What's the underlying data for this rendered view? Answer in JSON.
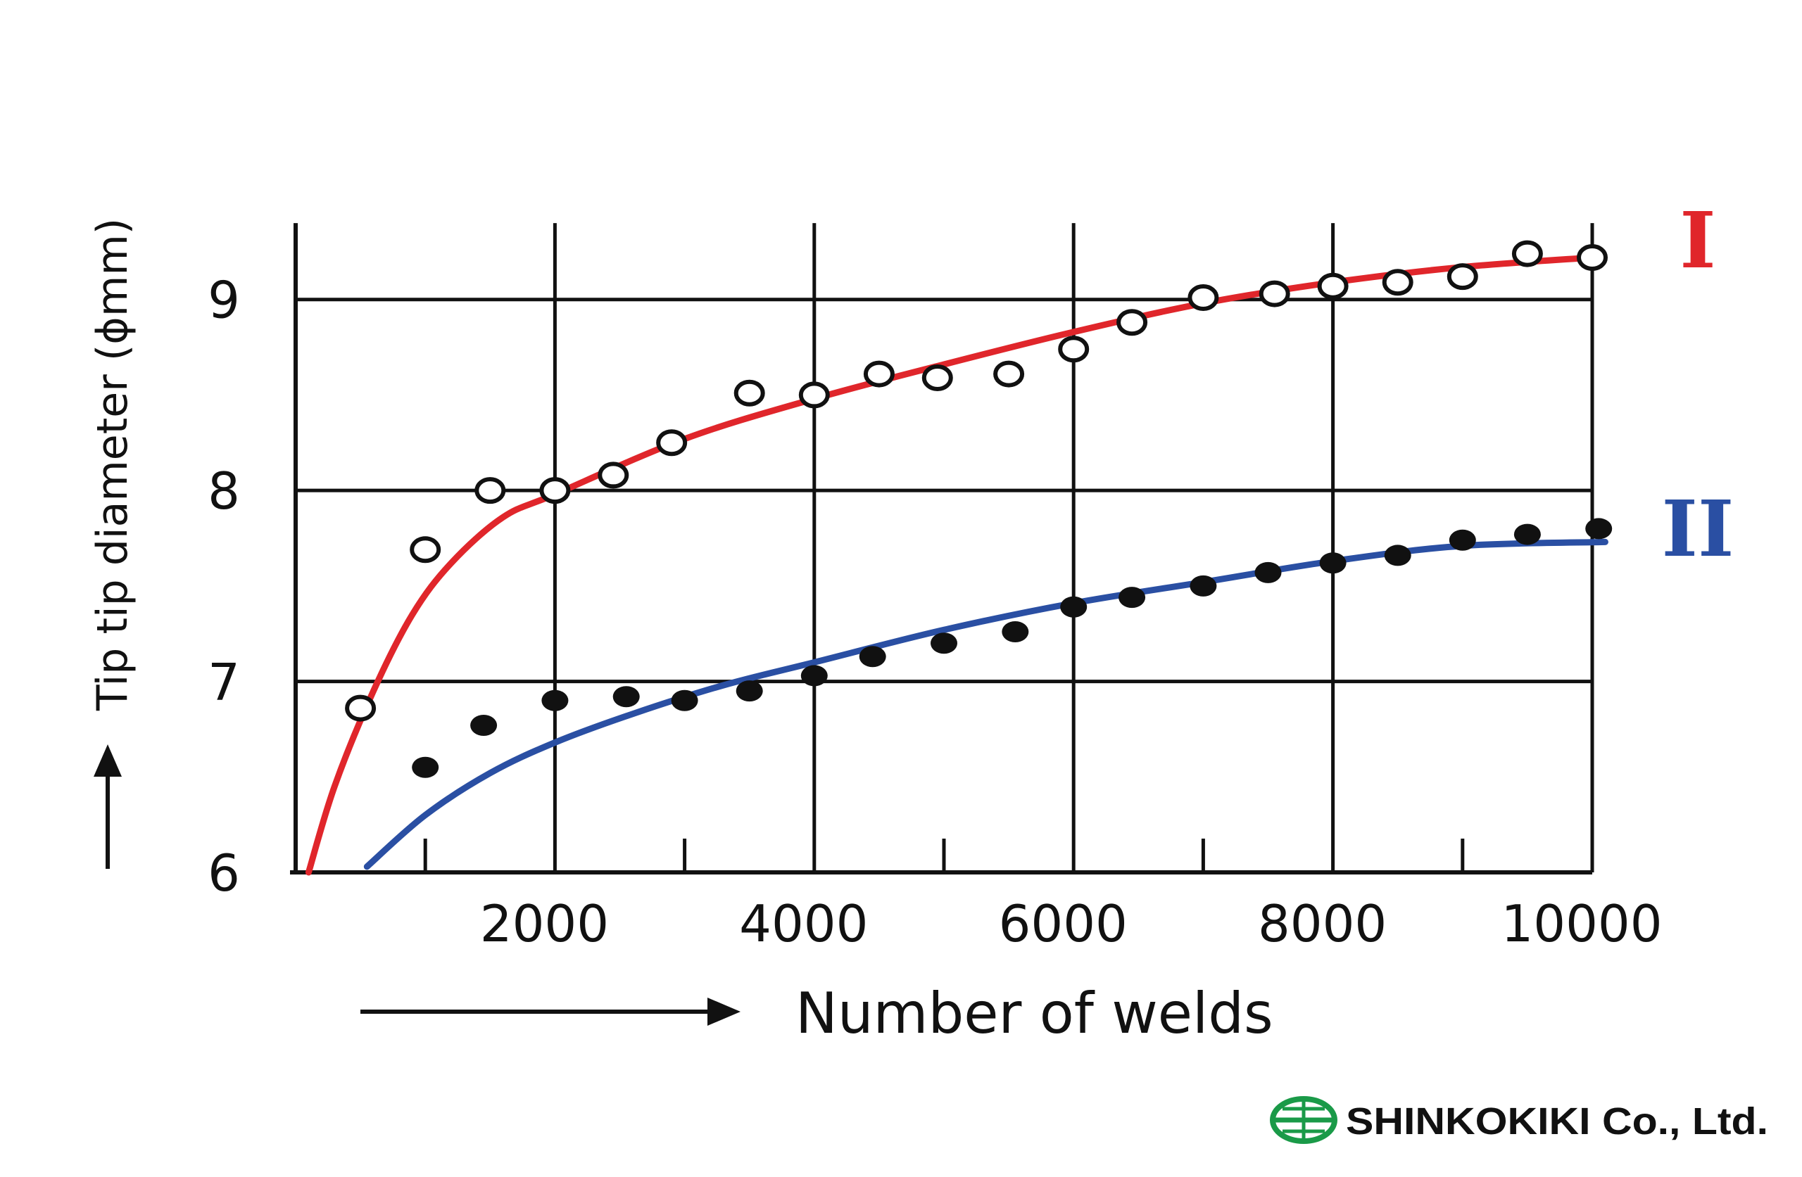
{
  "chart_data": {
    "type": "scatter",
    "xlabel": "Number of welds",
    "ylabel": "Tip tip diameter (ϕmm)",
    "x_range": [
      0,
      10000
    ],
    "y_range": [
      6,
      9.5
    ],
    "x_ticks": [
      "2000",
      "4000",
      "6000",
      "8000",
      "10000"
    ],
    "x_tick_values": [
      2000,
      4000,
      6000,
      8000,
      10000
    ],
    "y_ticks": [
      "6",
      "7",
      "8",
      "9"
    ],
    "y_tick_values": [
      6,
      7,
      8,
      9
    ],
    "grid": true,
    "series": [
      {
        "name": "I",
        "color": "#e0262b",
        "marker": "open-circle",
        "points": [
          [
            500,
            6.86
          ],
          [
            1000,
            7.69
          ],
          [
            1500,
            8.0
          ],
          [
            2000,
            8.0
          ],
          [
            2450,
            8.08
          ],
          [
            2900,
            8.25
          ],
          [
            3500,
            8.51
          ],
          [
            4000,
            8.5
          ],
          [
            4500,
            8.61
          ],
          [
            4950,
            8.59
          ],
          [
            5500,
            8.61
          ],
          [
            6000,
            8.74
          ],
          [
            6450,
            8.88
          ],
          [
            7000,
            9.01
          ],
          [
            7550,
            9.03
          ],
          [
            8000,
            9.07
          ],
          [
            8500,
            9.09
          ],
          [
            9000,
            9.12
          ],
          [
            9500,
            9.24
          ],
          [
            10000,
            9.22
          ]
        ],
        "fit": [
          [
            100,
            6.0
          ],
          [
            300,
            6.45
          ],
          [
            600,
            6.95
          ],
          [
            900,
            7.35
          ],
          [
            1200,
            7.62
          ],
          [
            1600,
            7.86
          ],
          [
            2000,
            7.98
          ],
          [
            3000,
            8.27
          ],
          [
            4000,
            8.48
          ],
          [
            5000,
            8.66
          ],
          [
            6000,
            8.83
          ],
          [
            7000,
            8.98
          ],
          [
            8000,
            9.09
          ],
          [
            9000,
            9.17
          ],
          [
            10000,
            9.22
          ]
        ]
      },
      {
        "name": "II",
        "color": "#2a4fa3",
        "marker": "filled-circle",
        "points": [
          [
            1000,
            6.55
          ],
          [
            1450,
            6.77
          ],
          [
            2000,
            6.9
          ],
          [
            2550,
            6.92
          ],
          [
            3000,
            6.9
          ],
          [
            3500,
            6.95
          ],
          [
            4000,
            7.03
          ],
          [
            4450,
            7.13
          ],
          [
            5000,
            7.2
          ],
          [
            5550,
            7.26
          ],
          [
            6000,
            7.39
          ],
          [
            6450,
            7.44
          ],
          [
            7000,
            7.5
          ],
          [
            7500,
            7.57
          ],
          [
            8000,
            7.62
          ],
          [
            8500,
            7.66
          ],
          [
            9000,
            7.74
          ],
          [
            9500,
            7.77
          ],
          [
            10050,
            7.8
          ]
        ],
        "fit": [
          [
            550,
            6.03
          ],
          [
            1000,
            6.3
          ],
          [
            1500,
            6.52
          ],
          [
            2000,
            6.68
          ],
          [
            2600,
            6.83
          ],
          [
            3300,
            6.98
          ],
          [
            4000,
            7.1
          ],
          [
            5000,
            7.27
          ],
          [
            6000,
            7.41
          ],
          [
            7000,
            7.52
          ],
          [
            8000,
            7.63
          ],
          [
            9000,
            7.71
          ],
          [
            10100,
            7.73
          ]
        ]
      }
    ]
  },
  "logo": {
    "text": "SHINKOKIKI Co., Ltd.",
    "color": "#1a9a48"
  }
}
